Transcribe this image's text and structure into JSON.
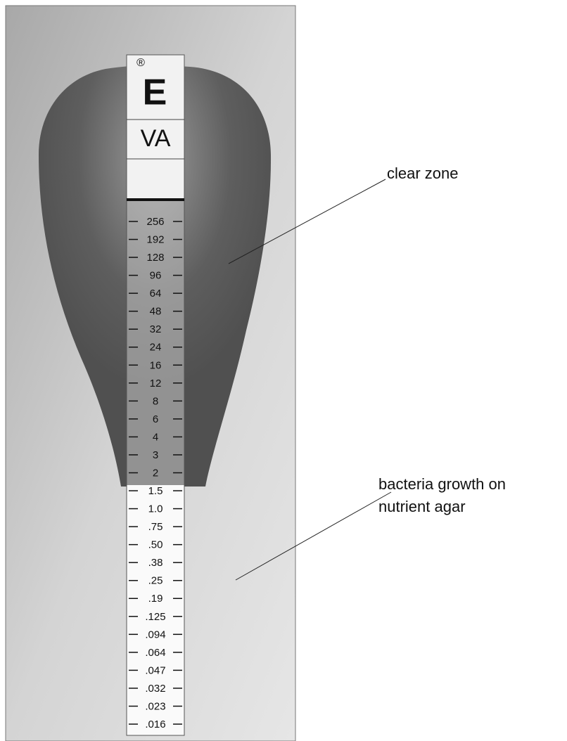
{
  "strip": {
    "registered": "®",
    "logo": "E",
    "drug": "VA",
    "scale": [
      "256",
      "192",
      "128",
      "96",
      "64",
      "48",
      "32",
      "24",
      "16",
      "12",
      "8",
      "6",
      "4",
      "3",
      "2",
      "1.5",
      "1.0",
      ".75",
      ".50",
      ".38",
      ".25",
      ".19",
      ".125",
      ".094",
      ".064",
      ".047",
      ".032",
      ".023",
      ".016"
    ]
  },
  "annotations": [
    {
      "lines": [
        "clear zone"
      ]
    },
    {
      "lines": [
        "bacteria growth on",
        "nutrient agar"
      ]
    }
  ]
}
